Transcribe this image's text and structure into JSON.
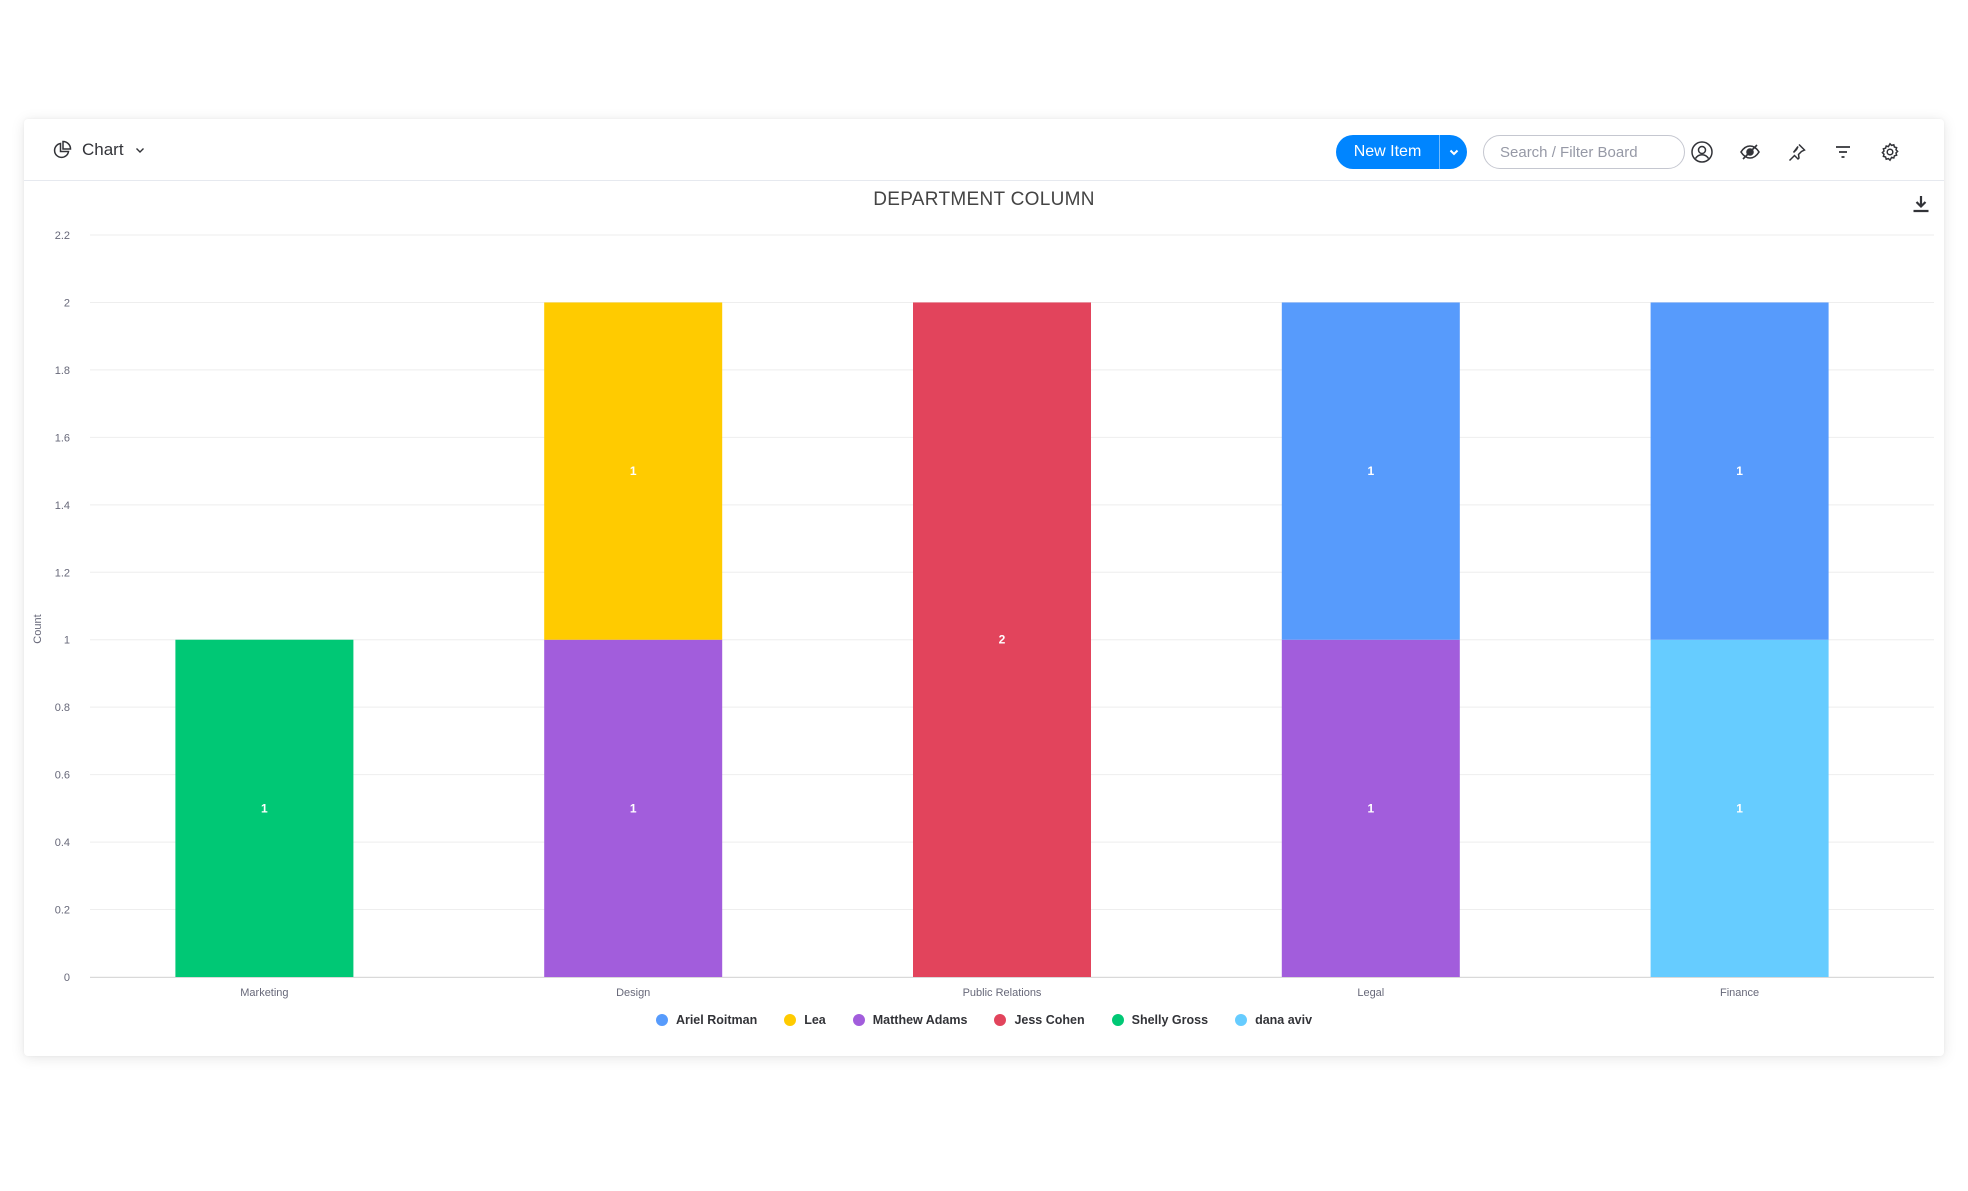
{
  "toolbar": {
    "view_label": "Chart",
    "new_item_label": "New Item",
    "search_placeholder": "Search / Filter Board",
    "icons": [
      "pie-chart-icon",
      "chevron-down-icon",
      "person-icon",
      "eye-hide-icon",
      "pin-icon",
      "filter-icon",
      "gear-icon"
    ]
  },
  "chart_data": {
    "type": "bar",
    "stacked": true,
    "title": "DEPARTMENT COLUMN",
    "xlabel": "",
    "ylabel": "Count",
    "ylim": [
      0,
      2.2
    ],
    "yticks": [
      "0",
      "0.2",
      "0.4",
      "0.6",
      "0.8",
      "1",
      "1.2",
      "1.4",
      "1.6",
      "1.8",
      "2",
      "2.2"
    ],
    "grid": true,
    "legend_position": "bottom",
    "categories": [
      "Marketing",
      "Design",
      "Public Relations",
      "Legal",
      "Finance"
    ],
    "series": [
      {
        "name": "dana aviv",
        "color": "#66ccff",
        "values": [
          0,
          0,
          0,
          0,
          1
        ]
      },
      {
        "name": "Matthew Adams",
        "color": "#a25ddc",
        "values": [
          0,
          1,
          0,
          1,
          0
        ]
      },
      {
        "name": "Shelly Gross",
        "color": "#00c875",
        "values": [
          1,
          0,
          0,
          0,
          0
        ]
      },
      {
        "name": "Jess Cohen",
        "color": "#e2445c",
        "values": [
          0,
          0,
          2,
          0,
          0
        ]
      },
      {
        "name": "Lea",
        "color": "#ffcb00",
        "values": [
          0,
          1,
          0,
          0,
          0
        ]
      },
      {
        "name": "Ariel Roitman",
        "color": "#579bfc",
        "values": [
          0,
          0,
          0,
          1,
          1
        ]
      }
    ],
    "legend": [
      {
        "name": "Ariel Roitman",
        "color": "#579bfc"
      },
      {
        "name": "Lea",
        "color": "#ffcb00"
      },
      {
        "name": "Matthew Adams",
        "color": "#a25ddc"
      },
      {
        "name": "Jess Cohen",
        "color": "#e2445c"
      },
      {
        "name": "Shelly Gross",
        "color": "#00c875"
      },
      {
        "name": "dana aviv",
        "color": "#66ccff"
      }
    ]
  }
}
